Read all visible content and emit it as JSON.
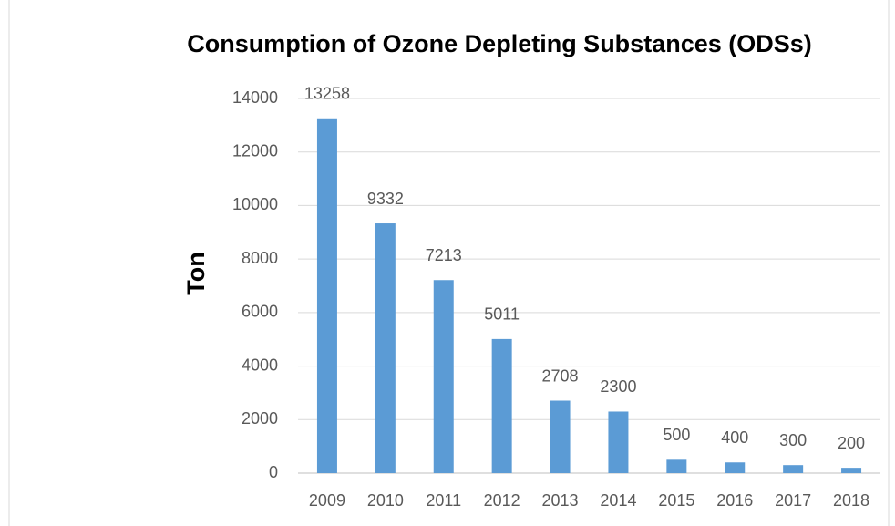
{
  "chart_data": {
    "type": "bar",
    "title": "Consumption of Ozone Depleting Substances (ODSs)",
    "y_label": "Ton",
    "categories": [
      "2009",
      "2010",
      "2011",
      "2012",
      "2013",
      "2014",
      "2015",
      "2016",
      "2017",
      "2018"
    ],
    "values": [
      13258,
      9332,
      7213,
      5011,
      2708,
      2300,
      500,
      400,
      300,
      200
    ],
    "color": "#5b9bd5",
    "ylim": [
      0,
      14000
    ],
    "yticks": [
      0,
      2000,
      4000,
      6000,
      8000,
      10000,
      12000,
      14000
    ],
    "grid": true
  }
}
